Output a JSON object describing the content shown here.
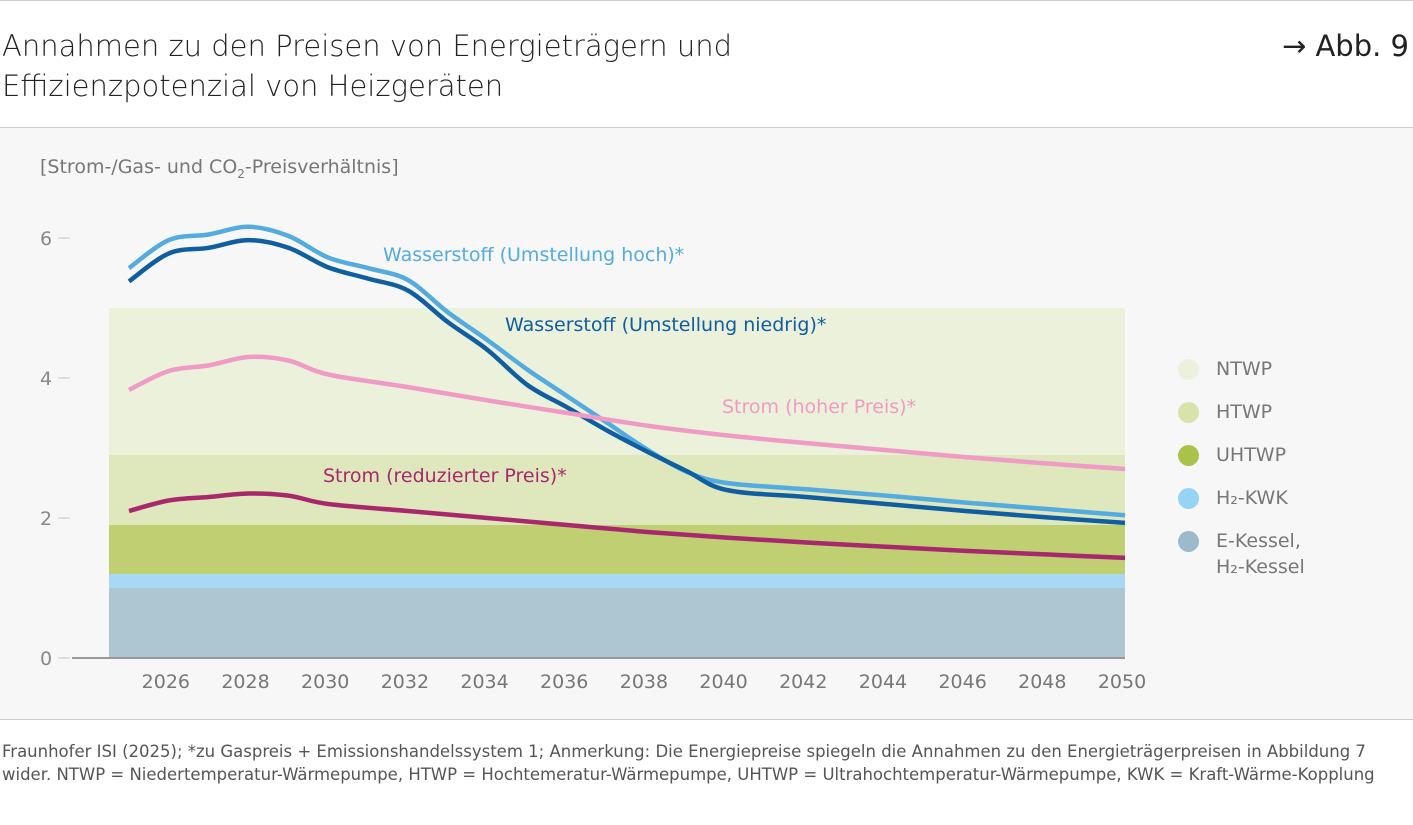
{
  "header": {
    "title": "Annahmen zu den Preisen von Energieträgern und Effizienzpotenzial von Heizgeräten",
    "figure_ref": "→ Abb. 9"
  },
  "chart_data": {
    "type": "line",
    "ylabel_main": "[Strom-/Gas- und CO",
    "ylabel_sub": "2",
    "ylabel_end": "-Preisverhältnis]",
    "ylim": [
      0,
      6.5
    ],
    "yticks": [
      "0",
      "2",
      "4",
      "6"
    ],
    "xticks": [
      "2026",
      "2028",
      "2030",
      "2032",
      "2034",
      "2036",
      "2038",
      "2040",
      "2042",
      "2044",
      "2046",
      "2048",
      "2050"
    ],
    "bands": [
      {
        "name": "E-Kessel, H2-Kessel",
        "from": 0,
        "to": 1.0,
        "color": "#aec6d2"
      },
      {
        "name": "H2-KWK",
        "from": 1.0,
        "to": 1.2,
        "color": "#a8d8f3"
      },
      {
        "name": "UHTWP",
        "from": 1.2,
        "to": 1.9,
        "color": "#bfcf72"
      },
      {
        "name": "HTWP",
        "from": 1.9,
        "to": 2.9,
        "color": "#dfe7bd"
      },
      {
        "name": "NTWP",
        "from": 2.9,
        "to": 5.0,
        "color": "#ebf1da"
      }
    ],
    "series": [
      {
        "name": "Wasserstoff (Umstellung hoch)*",
        "color": "#53abe0",
        "x": [
          2025,
          2026,
          2027,
          2028,
          2029,
          2030,
          2031,
          2032,
          2033,
          2034,
          2035,
          2036,
          2037,
          2038,
          2039,
          2040,
          2042,
          2044,
          2046,
          2048,
          2050
        ],
        "y": [
          5.57,
          5.97,
          6.05,
          6.16,
          6.03,
          5.72,
          5.57,
          5.4,
          4.94,
          4.54,
          4.12,
          3.74,
          3.36,
          2.98,
          2.66,
          2.5,
          2.41,
          2.32,
          2.22,
          2.13,
          2.04
        ]
      },
      {
        "name": "Wasserstoff (Umstellung niedrig)*",
        "color": "#0f5ea2",
        "x": [
          2025,
          2026,
          2027,
          2028,
          2029,
          2030,
          2031,
          2032,
          2033,
          2034,
          2035,
          2036,
          2037,
          2038,
          2039,
          2040,
          2042,
          2044,
          2046,
          2048,
          2050
        ],
        "y": [
          5.38,
          5.78,
          5.86,
          5.97,
          5.86,
          5.58,
          5.42,
          5.25,
          4.8,
          4.4,
          3.9,
          3.58,
          3.25,
          2.95,
          2.67,
          2.4,
          2.3,
          2.2,
          2.1,
          2.01,
          1.93
        ]
      },
      {
        "name": "Strom (hoher Preis)*",
        "color": "#f09bc6",
        "x": [
          2025,
          2026,
          2027,
          2028,
          2029,
          2030,
          2032,
          2034,
          2036,
          2038,
          2040,
          2042,
          2044,
          2046,
          2048,
          2050
        ],
        "y": [
          3.83,
          4.1,
          4.18,
          4.3,
          4.25,
          4.05,
          3.87,
          3.68,
          3.5,
          3.32,
          3.18,
          3.07,
          2.97,
          2.87,
          2.78,
          2.7
        ]
      },
      {
        "name": "Strom (reduzierter Preis)*",
        "color": "#a8286c",
        "x": [
          2025,
          2026,
          2027,
          2028,
          2029,
          2030,
          2032,
          2034,
          2036,
          2038,
          2040,
          2042,
          2044,
          2046,
          2048,
          2050
        ],
        "y": [
          2.1,
          2.25,
          2.3,
          2.35,
          2.32,
          2.2,
          2.1,
          2.0,
          1.9,
          1.8,
          1.72,
          1.65,
          1.59,
          1.53,
          1.48,
          1.43
        ]
      }
    ],
    "legend": [
      {
        "label": "NTWP",
        "color": "#ebf1da"
      },
      {
        "label": "HTWP",
        "color": "#d8e3aa"
      },
      {
        "label": "UHTWP",
        "color": "#a8c24a"
      },
      {
        "label": "H₂-KWK",
        "color": "#95d4f5"
      },
      {
        "label": "E-Kessel,\nH₂-Kessel",
        "color": "#9bbacb"
      }
    ],
    "legend_position": "right",
    "grid": false
  },
  "footnote": "Fraunhofer ISI (2025); *zu Gaspreis + Emissionshandelssystem 1; Anmerkung: Die Energiepreise spiegeln die Annahmen zu den Energieträgerpreisen in Abbildung 7 wider. NTWP = Niedertemperatur-Wärmepumpe, HTWP = Hochtemeratur-Wärmepumpe, UHTWP = Ultrahochtemperatur-Wärmepumpe, KWK = Kraft-Wärme-Kopplung"
}
